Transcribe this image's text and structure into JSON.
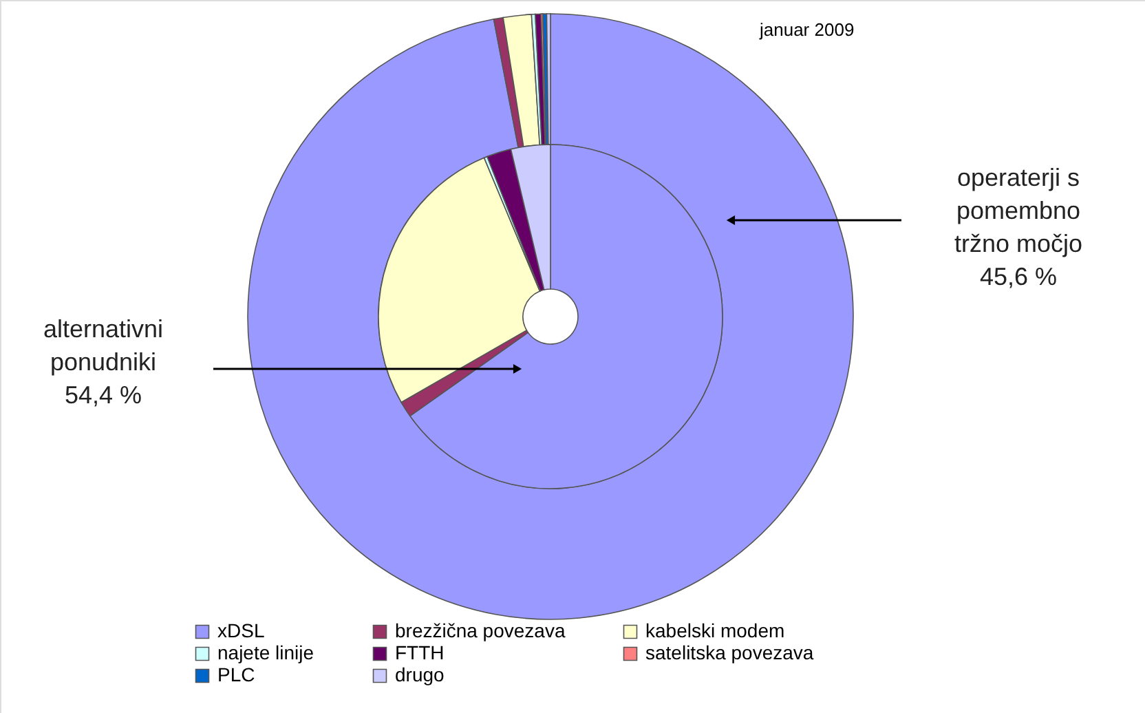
{
  "chart_data": {
    "type": "donut",
    "title": "januar 2009",
    "categories": [
      "xDSL",
      "brezžična povezava",
      "kabelski modem",
      "najete linije",
      "FTTH",
      "satelitska povezava",
      "PLC",
      "drugo"
    ],
    "colors": [
      "#9999ff",
      "#993366",
      "#ffffcc",
      "#ccffff",
      "#660066",
      "#ff8080",
      "#0066cc",
      "#ccccff"
    ],
    "series": [
      {
        "values": [
          97.0,
          0.5,
          1.5,
          0.2,
          0.3,
          0.1,
          0.2,
          0.2
        ]
      },
      {
        "values": [
          65.2,
          1.5,
          27.0,
          0.3,
          2.3,
          null,
          null,
          3.7
        ]
      }
    ],
    "annotations": [
      "operaterji s\npomembno\ntržno močjo\n45,6 %",
      "alternativni\nponudniki\n54,4 %"
    ],
    "legend": "bottom"
  }
}
